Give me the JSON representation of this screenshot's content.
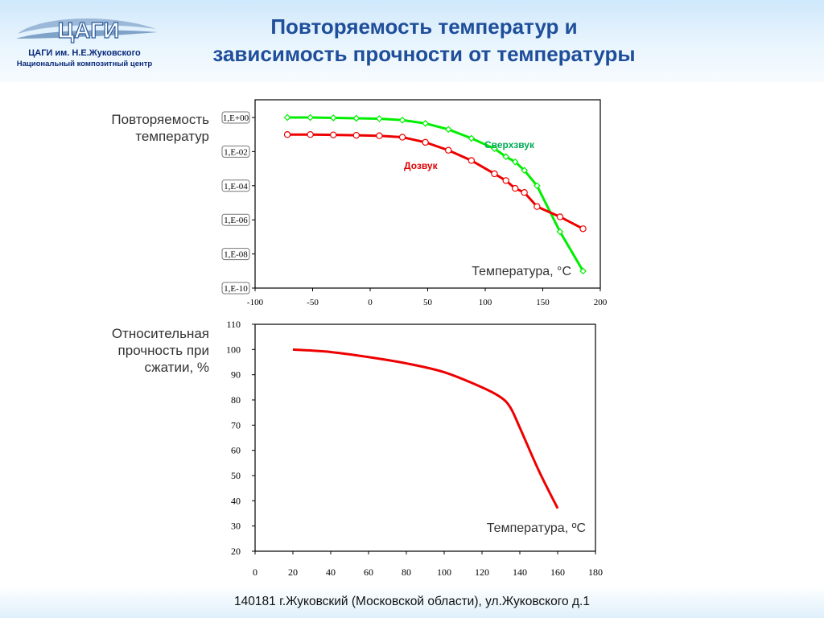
{
  "header": {
    "org_name": "ЦАГИ им. Н.Е.Жуковского",
    "org_sub": "Национальный композитный центр",
    "logo_text": "ЦАГИ",
    "title_line1": "Повторяемость температур и",
    "title_line2": "зависимость прочности от температуры"
  },
  "footer": {
    "address": "140181 г.Жуковский (Московской области), ул.Жуковского д.1"
  },
  "colors": {
    "title": "#1f4e9a",
    "supersonic": "#00ee00",
    "subsonic": "#ee0000",
    "curve": "#ee0000"
  },
  "chart_data": [
    {
      "type": "line",
      "ylabel_lines": [
        "Повторяемость",
        "температур"
      ],
      "xlabel": "Температура, °C",
      "xlim": [
        -100,
        200
      ],
      "x_ticks": [
        "-100",
        "-50",
        "0",
        "50",
        "100",
        "150",
        "200"
      ],
      "y_scale": "log",
      "ylim": [
        1e-10,
        1
      ],
      "y_ticks": [
        "1,E+00",
        "1,E-02",
        "1,E-04",
        "1,E-06",
        "1,E-08",
        "1,E-10"
      ],
      "series": [
        {
          "name": "Сверхзвук",
          "x": [
            -72,
            -52,
            -32,
            -12,
            8,
            28,
            48,
            68,
            88,
            108,
            118,
            126,
            134,
            145,
            165,
            185
          ],
          "y": [
            1.0,
            1.0,
            0.95,
            0.9,
            0.85,
            0.7,
            0.45,
            0.2,
            0.06,
            0.015,
            0.005,
            0.0025,
            0.0008,
            0.0001,
            2e-07,
            1e-09
          ]
        },
        {
          "name": "Дозвук",
          "x": [
            -72,
            -52,
            -32,
            -12,
            8,
            28,
            48,
            68,
            88,
            108,
            118,
            126,
            134,
            145,
            165,
            185
          ],
          "y": [
            0.1,
            0.1,
            0.095,
            0.09,
            0.085,
            0.07,
            0.035,
            0.012,
            0.003,
            0.0005,
            0.0002,
            7e-05,
            4e-05,
            6e-06,
            1.5e-06,
            3e-07
          ]
        }
      ]
    },
    {
      "type": "line",
      "ylabel_lines": [
        "Относительная",
        "прочность при",
        "сжатии, %"
      ],
      "xlabel": "Температура, ºC",
      "xlim": [
        0,
        180
      ],
      "ylim": [
        20,
        110
      ],
      "x_ticks": [
        "0",
        "20",
        "40",
        "60",
        "80",
        "100",
        "120",
        "140",
        "160",
        "180"
      ],
      "y_ticks": [
        "20",
        "30",
        "40",
        "50",
        "60",
        "70",
        "80",
        "90",
        "100",
        "110"
      ],
      "series": [
        {
          "x": [
            20,
            40,
            60,
            80,
            100,
            120,
            130,
            135,
            140,
            150,
            160
          ],
          "y": [
            100,
            99,
            97,
            94.5,
            91,
            85,
            81,
            77,
            69,
            52,
            37
          ]
        }
      ]
    }
  ]
}
